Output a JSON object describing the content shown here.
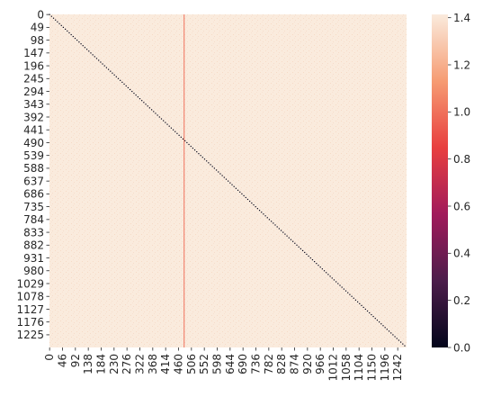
{
  "chart_data": {
    "type": "heatmap",
    "title": "",
    "xlabel": "",
    "ylabel": "",
    "n_rows": 1274,
    "n_cols": 1274,
    "x_ticks": [
      "0",
      "46",
      "92",
      "138",
      "184",
      "230",
      "276",
      "322",
      "368",
      "414",
      "460",
      "506",
      "552",
      "598",
      "644",
      "690",
      "736",
      "782",
      "828",
      "874",
      "920",
      "966",
      "1012",
      "1058",
      "1104",
      "1150",
      "1196",
      "1242"
    ],
    "y_ticks": [
      "0",
      "49",
      "98",
      "147",
      "196",
      "245",
      "294",
      "343",
      "392",
      "441",
      "490",
      "539",
      "588",
      "637",
      "686",
      "735",
      "784",
      "833",
      "882",
      "931",
      "980",
      "1029",
      "1078",
      "1127",
      "1176",
      "1225"
    ],
    "base_value": 1.414,
    "diagonal_value": 0.0,
    "highlight_column": {
      "index": 480,
      "value": 1.0
    },
    "colorbar": {
      "range": [
        0.0,
        1.414
      ],
      "ticks": [
        "0.0",
        "0.2",
        "0.4",
        "0.6",
        "0.8",
        "1.0",
        "1.2",
        "1.4"
      ],
      "colormap": "rocket",
      "stops": [
        "#03051a",
        "#4c1d4b",
        "#a11a5b",
        "#e83f3f",
        "#f69c73",
        "#faebdd"
      ]
    }
  }
}
